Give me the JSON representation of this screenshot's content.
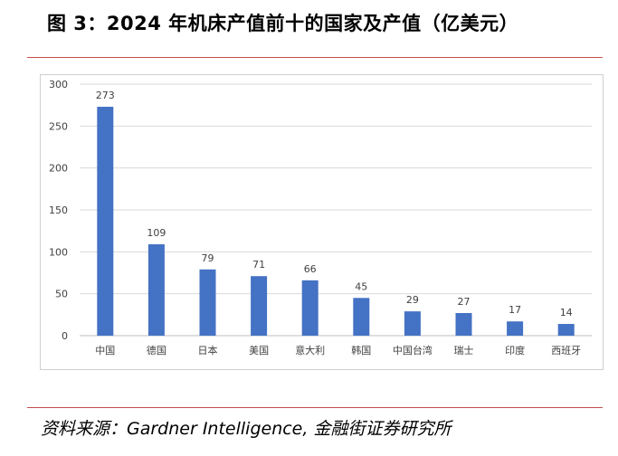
{
  "title": "图 3：2024 年机床产值前十的国家及产值（亿美元）",
  "source": "资料来源：Gardner Intelligence, 金融街证券研究所",
  "colors": {
    "bar": "#4472c4",
    "rule": "#c0504d",
    "grid": "#d9d9d9"
  },
  "chart_data": {
    "type": "bar",
    "categories": [
      "中国",
      "德国",
      "日本",
      "美国",
      "意大利",
      "韩国",
      "中国台湾",
      "瑞士",
      "印度",
      "西班牙"
    ],
    "values": [
      273,
      109,
      79,
      71,
      66,
      45,
      29,
      27,
      17,
      14
    ],
    "data_labels": [
      "273",
      "109",
      "79",
      "71",
      "66",
      "45",
      "29",
      "27",
      "17",
      "14"
    ],
    "yticks": [
      "0",
      "50",
      "100",
      "150",
      "200",
      "250",
      "300"
    ],
    "ylim": [
      0,
      300
    ],
    "grid": true,
    "legend": "none"
  }
}
